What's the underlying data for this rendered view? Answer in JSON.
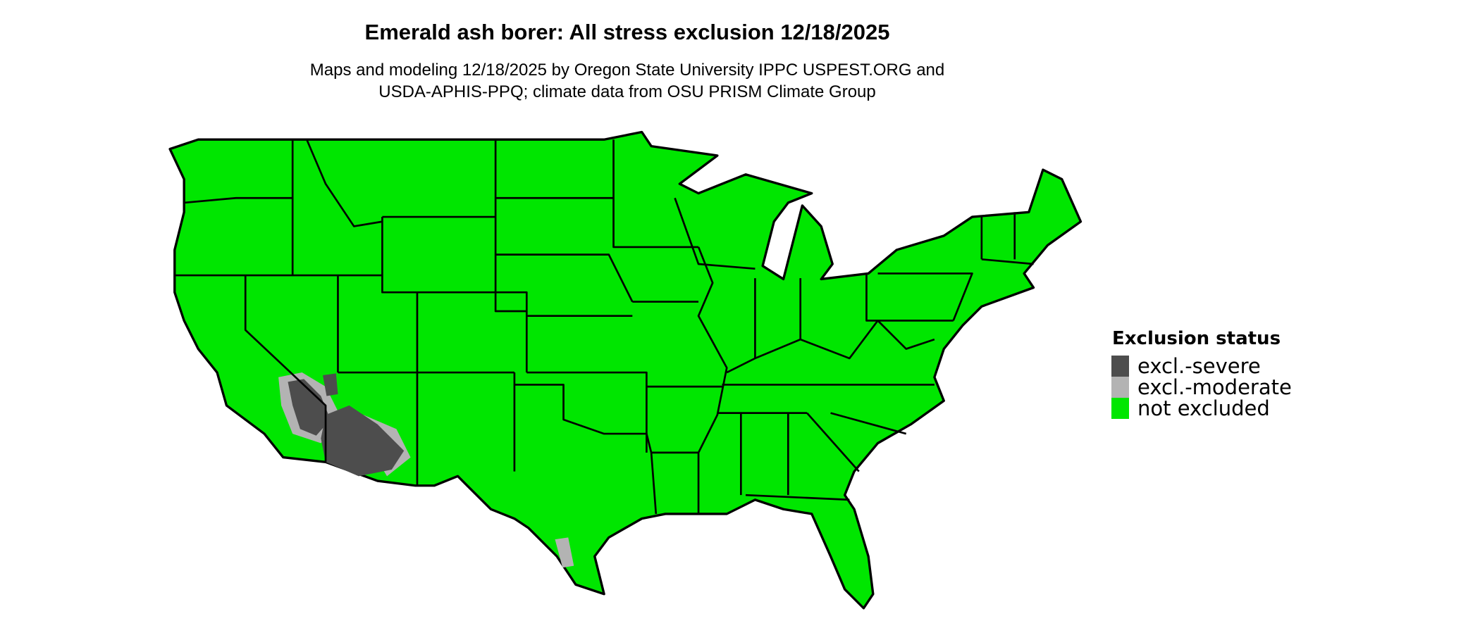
{
  "title": "Emerald ash borer: All stress exclusion 12/18/2025",
  "subtitle_lines": [
    "Maps and modeling 12/18/2025 by Oregon State University IPPC USPEST.ORG and",
    "USDA-APHIS-PPQ; climate data from OSU PRISM Climate Group"
  ],
  "legend": {
    "title": "Exclusion status",
    "items": [
      {
        "label": "excl.-severe",
        "color": "#4d4d4d"
      },
      {
        "label": "excl.-moderate",
        "color": "#b3b3b3"
      },
      {
        "label": "not excluded",
        "color": "#00e600"
      }
    ]
  },
  "map": {
    "region": "Contiguous United States",
    "state_border_color": "#000000"
  }
}
